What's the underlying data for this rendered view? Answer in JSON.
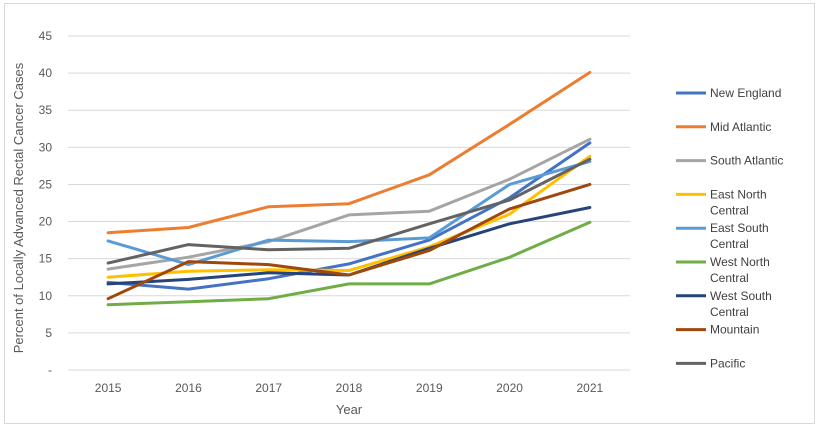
{
  "chart_data": {
    "type": "line",
    "title": "",
    "xlabel": "Year",
    "ylabel": "Percent of Locally Advanced Rectal Cancer Cases",
    "x": [
      "2015",
      "2016",
      "2017",
      "2018",
      "2019",
      "2020",
      "2021"
    ],
    "ylim": [
      0,
      45
    ],
    "yticks": [
      "-",
      "5",
      "10",
      "15",
      "20",
      "25",
      "30",
      "35",
      "40",
      "45"
    ],
    "grid": true,
    "legend_position": "right",
    "series": [
      {
        "name": "New England",
        "color": "#4472C4",
        "values": [
          11.8,
          10.9,
          12.3,
          14.3,
          17.5,
          23.2,
          30.6
        ]
      },
      {
        "name": "Mid Atlantic",
        "color": "#ED7D31",
        "values": [
          18.5,
          19.2,
          22.0,
          22.4,
          26.3,
          33.1,
          40.1
        ]
      },
      {
        "name": "South Atlantic",
        "color": "#A5A5A5",
        "values": [
          13.6,
          15.2,
          17.3,
          20.9,
          21.4,
          25.7,
          31.1
        ]
      },
      {
        "name": "East North Central",
        "color": "#FFC000",
        "values": [
          12.5,
          13.3,
          13.5,
          13.4,
          16.6,
          21.0,
          28.8
        ]
      },
      {
        "name": "East South Central",
        "color": "#5B9BD5",
        "values": [
          17.4,
          14.2,
          17.5,
          17.3,
          17.8,
          25.0,
          28.1
        ]
      },
      {
        "name": "West North Central",
        "color": "#70AD47",
        "values": [
          8.8,
          9.2,
          9.6,
          11.6,
          11.6,
          15.2,
          19.9
        ]
      },
      {
        "name": "West South Central",
        "color": "#264478",
        "values": [
          11.6,
          12.2,
          13.1,
          12.8,
          16.4,
          19.7,
          21.9
        ]
      },
      {
        "name": "Mountain",
        "color": "#9E480E",
        "values": [
          9.6,
          14.6,
          14.2,
          12.8,
          16.1,
          21.7,
          25.0
        ]
      },
      {
        "name": "Pacific",
        "color": "#636363",
        "values": [
          14.4,
          16.9,
          16.2,
          16.4,
          19.7,
          22.9,
          28.4
        ]
      }
    ]
  }
}
